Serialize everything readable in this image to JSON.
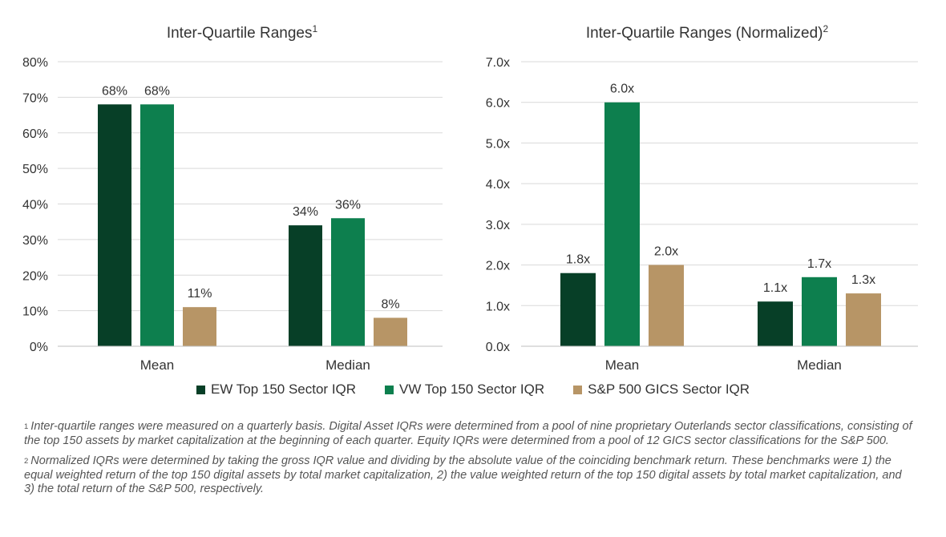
{
  "colors": {
    "ew": "#073f27",
    "vw": "#0d7f4e",
    "sp": "#b79566",
    "grid": "#d9d9d9",
    "text": "#333333"
  },
  "chart_data": [
    {
      "type": "bar",
      "title": "Inter-Quartile Ranges",
      "title_sup": "1",
      "categories": [
        "Mean",
        "Median"
      ],
      "series": [
        {
          "name": "EW Top 150 Sector IQR",
          "values": [
            68,
            34
          ]
        },
        {
          "name": "VW Top 150 Sector IQR",
          "values": [
            68,
            36
          ]
        },
        {
          "name": "S&P 500 GICS Sector IQR",
          "values": [
            11,
            8
          ]
        }
      ],
      "data_labels": [
        [
          "68%",
          "34%"
        ],
        [
          "68%",
          "36%"
        ],
        [
          "11%",
          "8%"
        ]
      ],
      "ylim": [
        0,
        80
      ],
      "yticks": [
        0,
        10,
        20,
        30,
        40,
        50,
        60,
        70,
        80
      ],
      "ytick_labels": [
        "0%",
        "10%",
        "20%",
        "30%",
        "40%",
        "50%",
        "60%",
        "70%",
        "80%"
      ],
      "xlabel": "",
      "ylabel": "",
      "grid": true
    },
    {
      "type": "bar",
      "title": "Inter-Quartile Ranges (Normalized)",
      "title_sup": "2",
      "categories": [
        "Mean",
        "Median"
      ],
      "series": [
        {
          "name": "EW Top 150 Sector IQR",
          "values": [
            1.8,
            1.1
          ]
        },
        {
          "name": "VW Top 150 Sector IQR",
          "values": [
            6.0,
            1.7
          ]
        },
        {
          "name": "S&P 500 GICS Sector IQR",
          "values": [
            2.0,
            1.3
          ]
        }
      ],
      "data_labels": [
        [
          "1.8x",
          "1.1x"
        ],
        [
          "6.0x",
          "1.7x"
        ],
        [
          "2.0x",
          "1.3x"
        ]
      ],
      "ylim": [
        0,
        7
      ],
      "yticks": [
        0,
        1,
        2,
        3,
        4,
        5,
        6,
        7
      ],
      "ytick_labels": [
        "0.0x",
        "1.0x",
        "2.0x",
        "3.0x",
        "4.0x",
        "5.0x",
        "6.0x",
        "7.0x"
      ],
      "xlabel": "",
      "ylabel": "",
      "grid": true
    }
  ],
  "legend": [
    {
      "label": "EW Top 150 Sector IQR",
      "color_key": "ew"
    },
    {
      "label": "VW Top 150 Sector IQR",
      "color_key": "vw"
    },
    {
      "label": "S&P 500 GICS Sector IQR",
      "color_key": "sp"
    }
  ],
  "footnotes": [
    {
      "marker": "1",
      "text": "Inter-quartile ranges were measured on a quarterly basis. Digital Asset IQRs were determined from a pool of nine proprietary Outerlands sector classifications, consisting of the top 150 assets by market capitalization at the beginning of each quarter. Equity IQRs were determined from a pool of 12 GICS sector classifications for the S&P 500."
    },
    {
      "marker": "2",
      "text": "Normalized IQRs were determined by taking the gross IQR value and dividing by the absolute value of the coinciding benchmark return. These benchmarks were 1) the equal weighted return of the top 150 digital assets by total market capitalization, 2) the value weighted return of the top 150 digital assets by total market capitalization, and 3) the total return of the S&P 500, respectively."
    }
  ]
}
